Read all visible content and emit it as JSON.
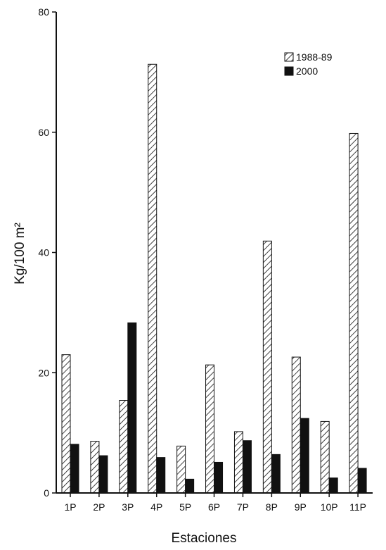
{
  "chart_data": {
    "type": "bar",
    "title": "",
    "xlabel": "Estaciones",
    "ylabel": "Kg/100 m²",
    "ylim": [
      0,
      80
    ],
    "yticks": [
      0,
      20,
      40,
      60,
      80
    ],
    "categories": [
      "1P",
      "2P",
      "3P",
      "4P",
      "5P",
      "6P",
      "7P",
      "8P",
      "9P",
      "10P",
      "11P"
    ],
    "series": [
      {
        "name": "1988-89",
        "pattern": "hatched",
        "values": [
          23.0,
          8.6,
          15.4,
          71.3,
          7.8,
          21.3,
          10.2,
          41.9,
          22.6,
          11.9,
          59.8
        ]
      },
      {
        "name": "2000",
        "pattern": "solid",
        "color": "#111111",
        "values": [
          8.1,
          6.2,
          28.3,
          5.9,
          2.3,
          5.1,
          8.7,
          6.4,
          12.4,
          2.5,
          4.1
        ]
      }
    ],
    "legend_position": "top-right",
    "grid": false
  }
}
